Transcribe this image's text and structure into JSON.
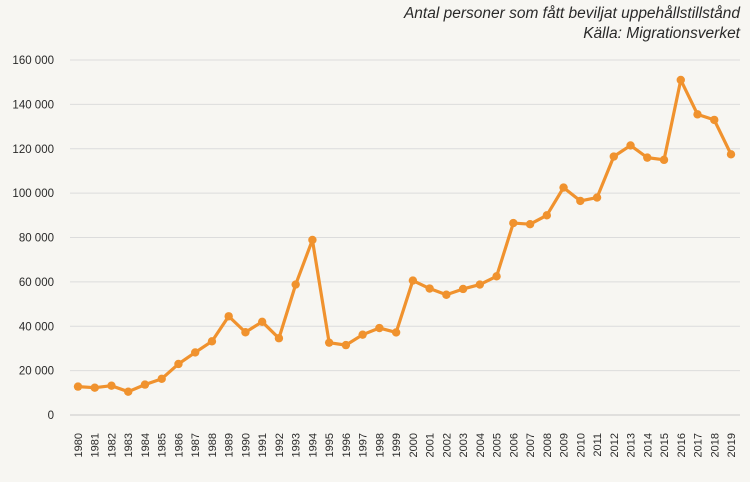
{
  "chart_data": {
    "type": "line",
    "title": "Antal personer som fått beviljat uppehållstillstånd",
    "subtitle": "Källa: Migrationsverket",
    "xlabel": "",
    "ylabel": "",
    "categories": [
      "1980",
      "1981",
      "1982",
      "1983",
      "1984",
      "1985",
      "1986",
      "1987",
      "1988",
      "1989",
      "1990",
      "1991",
      "1992",
      "1993",
      "1994",
      "1995",
      "1996",
      "1997",
      "1998",
      "1999",
      "2000",
      "2001",
      "2002",
      "2003",
      "2004",
      "2005",
      "2006",
      "2007",
      "2008",
      "2009",
      "2010",
      "2011",
      "2012",
      "2013",
      "2014",
      "2015",
      "2016",
      "2017",
      "2018",
      "2019"
    ],
    "values": [
      12800,
      12300,
      13200,
      10500,
      13700,
      16300,
      23000,
      28200,
      33200,
      44500,
      37300,
      42000,
      34600,
      58800,
      78900,
      32600,
      31500,
      36200,
      39200,
      37200,
      60600,
      57000,
      54200,
      56800,
      58800,
      62500,
      86500,
      86000,
      90000,
      102500,
      96500,
      98000,
      116500,
      121500,
      116000,
      115000,
      151000,
      135500,
      133000,
      117500
    ],
    "ylim": [
      0,
      160000
    ],
    "yticks": [
      0,
      20000,
      40000,
      60000,
      80000,
      100000,
      120000,
      140000,
      160000
    ],
    "ytick_labels": [
      "0",
      "20 000",
      "40 000",
      "60 000",
      "80 000",
      "100 000",
      "120 000",
      "140 000",
      "160 000"
    ],
    "grid": true,
    "legend": "none",
    "colors": {
      "line": "#f0922e",
      "grid": "#dcdcdc",
      "text": "#2a2a2a",
      "background": "#f7f6f2"
    }
  }
}
